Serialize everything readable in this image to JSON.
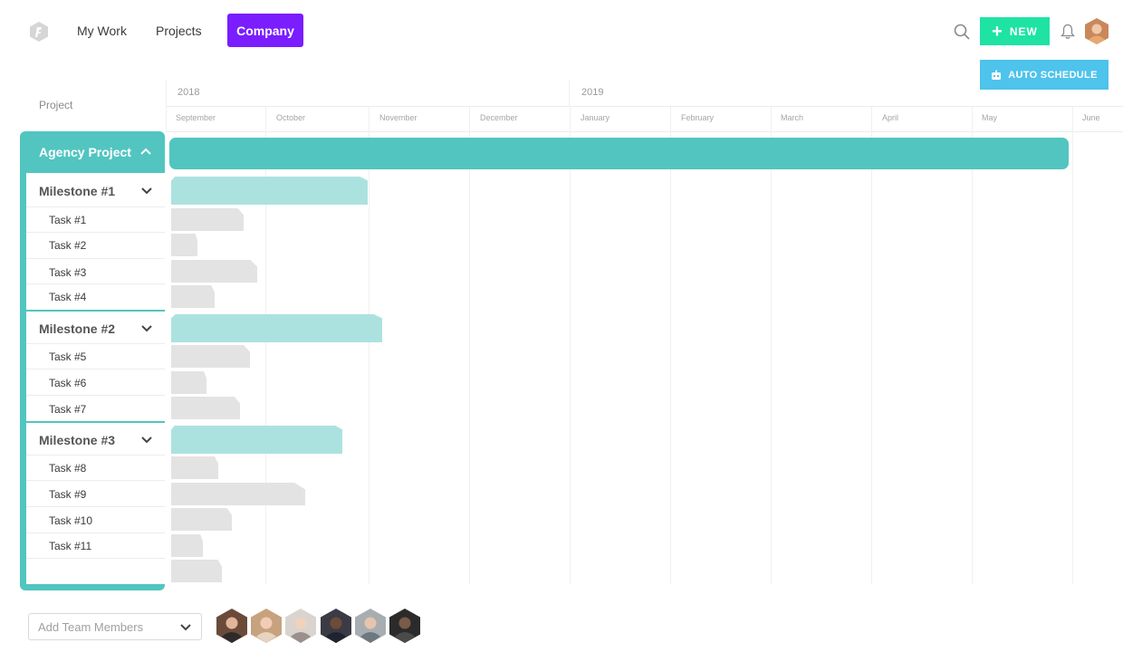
{
  "nav": {
    "items": [
      "My Work",
      "Projects"
    ],
    "active": "Company"
  },
  "toolbar": {
    "new_label": "NEW",
    "auto_schedule_label": "AUTO SCHEDULE",
    "icons": [
      "search-icon",
      "bell-icon",
      "plus-icon",
      "robot-icon"
    ]
  },
  "timeline": {
    "project_header": "Project",
    "years": [
      "2018",
      "2019"
    ],
    "months": [
      "September",
      "October",
      "November",
      "December",
      "January",
      "February",
      "March",
      "April",
      "May",
      "June"
    ]
  },
  "project": {
    "name": "Agency Project",
    "milestones": [
      {
        "name": "Milestone #1",
        "tasks": [
          "Task #1",
          "Task #2",
          "Task #3",
          "Task #4"
        ]
      },
      {
        "name": "Milestone #2",
        "tasks": [
          "Task #5",
          "Task #6",
          "Task #7"
        ]
      },
      {
        "name": "Milestone #3",
        "tasks": [
          "Task #8",
          "Task #9",
          "Task #10",
          "Task #11"
        ]
      }
    ]
  },
  "footer": {
    "add_team_placeholder": "Add Team Members",
    "member_count": 6
  },
  "colors": {
    "brand_purple": "#7a1dff",
    "new_green": "#1fe3a3",
    "auto_blue": "#4ec3ec",
    "project_teal": "#52c5c0",
    "milestone_teal": "#abe2e0",
    "task_gray": "#e3e3e3"
  }
}
